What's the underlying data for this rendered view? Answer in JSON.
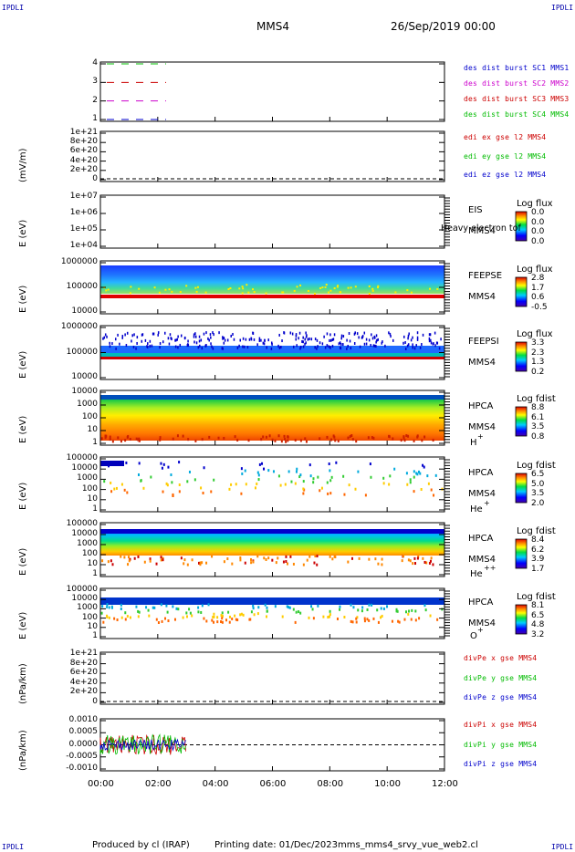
{
  "corners": {
    "tl": "IPDLI",
    "tr": "IPDLI",
    "bl": "IPDLI",
    "br": "IPDLI"
  },
  "header": {
    "spacecraft": "MMS4",
    "date": "26/Sep/2019 00:00"
  },
  "footer": {
    "produced": "Produced by cl (IRAP)",
    "printing": "Printing date: 01/Dec/2023",
    "file": "mms_mms4_srvy_vue_web2.cl"
  },
  "chart_data": [
    {
      "type": "line",
      "id": "burst",
      "ylabel": "",
      "yticks": [
        "4",
        "3",
        "2",
        "1"
      ],
      "ylim": [
        0.5,
        4.5
      ],
      "legend": [
        {
          "text": "des dist burst SC1 MMS1",
          "color": "#0000cc"
        },
        {
          "text": "des dist burst SC2 MMS2",
          "color": "#cc00cc"
        },
        {
          "text": "des dist burst SC3 MMS3",
          "color": "#cc0000"
        },
        {
          "text": "des dist burst SC4 MMS4",
          "color": "#00bb00"
        }
      ],
      "series": [
        {
          "name": "SC4",
          "y": 4,
          "color": "#00bb00"
        },
        {
          "name": "SC3",
          "y": 3,
          "color": "#cc0000"
        },
        {
          "name": "SC2",
          "y": 2,
          "color": "#cc00cc"
        },
        {
          "name": "SC1",
          "y": 1,
          "color": "#0000cc"
        }
      ]
    },
    {
      "type": "line",
      "id": "edi",
      "ylabel": "(mV/m)",
      "yticks": [
        "1e+21",
        "8e+20",
        "6e+20",
        "4e+20",
        "2e+20",
        "0"
      ],
      "ylim": [
        0,
        1e+21
      ],
      "legend": [
        {
          "text": "edi ex gse l2 MMS4",
          "color": "#cc0000"
        },
        {
          "text": "edi ey gse l2 MMS4",
          "color": "#00bb00"
        },
        {
          "text": "edi ez gse l2 MMS4",
          "color": "#0000cc"
        }
      ]
    },
    {
      "type": "heatmap",
      "id": "eis",
      "ylabel": "E (eV)",
      "yticks": [
        "1e+07",
        "1e+06",
        "1e+05",
        "1e+04"
      ],
      "instrument": [
        "EIS",
        "MMS4"
      ],
      "overlay": "Heavy electron tof",
      "cb_title": "Log flux",
      "cb_values": [
        "0.0",
        "0.0",
        "0.0",
        "0.0"
      ],
      "fill": "none"
    },
    {
      "type": "heatmap",
      "id": "feepse",
      "ylabel": "E (eV)",
      "yticks": [
        "1000000",
        "100000",
        "10000"
      ],
      "instrument": [
        "FEEPSE",
        "MMS4"
      ],
      "cb_title": "Log flux",
      "cb_values": [
        "2.8",
        "1.7",
        "0.6",
        "-0.5"
      ],
      "fill": "feeps"
    },
    {
      "type": "heatmap",
      "id": "feepsi",
      "ylabel": "E (eV)",
      "yticks": [
        "1000000",
        "100000",
        "10000"
      ],
      "instrument": [
        "FEEPSI",
        "MMS4"
      ],
      "cb_title": "Log flux",
      "cb_values": [
        "3.3",
        "2.3",
        "1.3",
        "0.2"
      ],
      "fill": "feepsi"
    },
    {
      "type": "heatmap",
      "id": "hpca_h",
      "ylabel": "E (eV)",
      "yticks": [
        "10000",
        "1000",
        "100",
        "10",
        "1"
      ],
      "instrument": [
        "HPCA",
        "MMS4"
      ],
      "species": "H",
      "charge": "+",
      "cb_title": "Log fdist",
      "cb_values": [
        "8.8",
        "6.1",
        "3.5",
        "0.8"
      ],
      "fill": "h"
    },
    {
      "type": "heatmap",
      "id": "hpca_he1",
      "ylabel": "E (eV)",
      "yticks": [
        "100000",
        "10000",
        "1000",
        "100",
        "10",
        "1"
      ],
      "instrument": [
        "HPCA",
        "MMS4"
      ],
      "species": "He",
      "charge": "+",
      "cb_title": "Log fdist",
      "cb_values": [
        "6.5",
        "5.0",
        "3.5",
        "2.0"
      ],
      "fill": "he1"
    },
    {
      "type": "heatmap",
      "id": "hpca_he2",
      "ylabel": "E (eV)",
      "yticks": [
        "100000",
        "10000",
        "1000",
        "100",
        "10",
        "1"
      ],
      "instrument": [
        "HPCA",
        "MMS4"
      ],
      "species": "He",
      "charge": "++",
      "cb_title": "Log fdist",
      "cb_values": [
        "8.4",
        "6.2",
        "3.9",
        "1.7"
      ],
      "fill": "he2"
    },
    {
      "type": "heatmap",
      "id": "hpca_o",
      "ylabel": "E (eV)",
      "yticks": [
        "100000",
        "10000",
        "1000",
        "100",
        "10",
        "1"
      ],
      "instrument": [
        "HPCA",
        "MMS4"
      ],
      "species": "O",
      "charge": "+",
      "cb_title": "Log fdist",
      "cb_values": [
        "8.1",
        "6.5",
        "4.8",
        "3.2"
      ],
      "fill": "o"
    },
    {
      "type": "line",
      "id": "divpe",
      "ylabel": "(nPa/km)",
      "yticks": [
        "1e+21",
        "8e+20",
        "6e+20",
        "4e+20",
        "2e+20",
        "0"
      ],
      "ylim": [
        0,
        1e+21
      ],
      "legend": [
        {
          "text": "divPe x gse MMS4",
          "color": "#cc0000"
        },
        {
          "text": "divPe y gse MMS4",
          "color": "#00bb00"
        },
        {
          "text": "divPe z gse MMS4",
          "color": "#0000cc"
        }
      ]
    },
    {
      "type": "line",
      "id": "divpi",
      "ylabel": "(nPa/km)",
      "yticks": [
        "0.0010",
        "0.0005",
        "0.0000",
        "-0.0005",
        "-0.0010"
      ],
      "ylim": [
        -0.0012,
        0.0012
      ],
      "legend": [
        {
          "text": "divPi x gse MMS4",
          "color": "#cc0000"
        },
        {
          "text": "divPi y gse MMS4",
          "color": "#00bb00"
        },
        {
          "text": "divPi z gse MMS4",
          "color": "#0000cc"
        }
      ],
      "data_until_hours": 3.0
    }
  ],
  "x_axis": {
    "ticks": [
      "00:00",
      "02:00",
      "04:00",
      "06:00",
      "08:00",
      "10:00",
      "12:00"
    ],
    "xlim": [
      0,
      12
    ]
  }
}
